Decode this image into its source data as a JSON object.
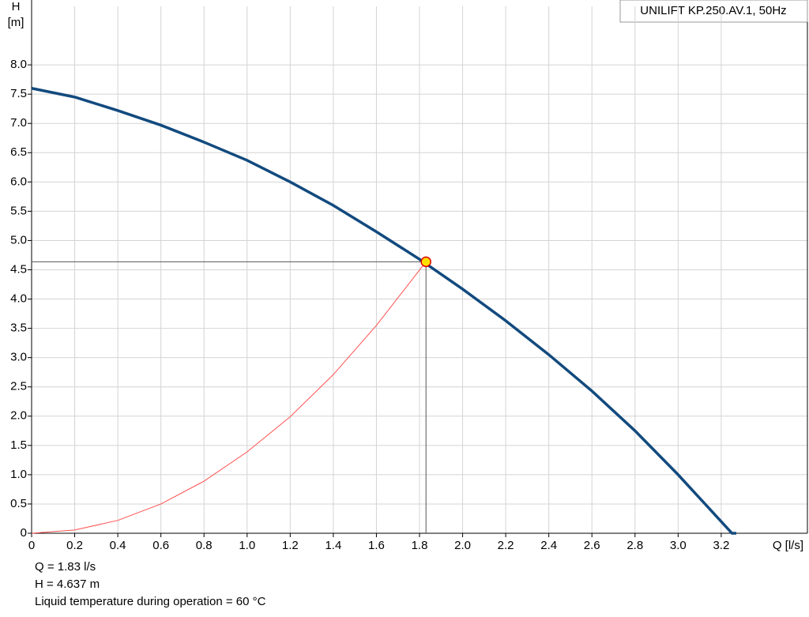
{
  "chart_data": {
    "type": "line",
    "title": "UNILIFT KP.250.AV.1, 50Hz",
    "x_label": "Q [l/s]",
    "y_label": [
      "H",
      "[m]"
    ],
    "xlim": [
      0,
      3.6
    ],
    "ylim": [
      0,
      9
    ],
    "xticks": [
      0,
      0.2,
      0.4,
      0.6,
      0.8,
      {
        "value": 1,
        "label": "1.0"
      },
      1.2,
      1.4,
      1.6,
      1.8,
      {
        "value": 2,
        "label": "2.0"
      },
      2.2,
      2.4,
      2.6,
      2.8,
      {
        "value": 3,
        "label": "3.0"
      },
      3.2
    ],
    "yticks": [
      0,
      0.5,
      {
        "value": 1,
        "label": "1.0"
      },
      1.5,
      {
        "value": 2,
        "label": "2.0"
      },
      2.5,
      {
        "value": 3,
        "label": "3.0"
      },
      3.5,
      {
        "value": 4,
        "label": "4.0"
      },
      4.5,
      {
        "value": 5,
        "label": "5.0"
      },
      5.5,
      {
        "value": 6,
        "label": "6.0"
      },
      6.5,
      {
        "value": 7,
        "label": "7.0"
      },
      7.5,
      {
        "value": 8,
        "label": "8.0"
      }
    ],
    "grid": true,
    "series": [
      {
        "color": "#124a7e",
        "x": [
          0,
          0.2,
          0.4,
          0.6,
          0.8,
          1.0,
          1.2,
          1.4,
          1.6,
          1.8,
          2.0,
          2.2,
          2.4,
          2.6,
          2.8,
          3.0,
          3.2,
          3.25,
          3.27
        ],
        "values": [
          7.6,
          7.45,
          7.22,
          6.97,
          6.68,
          6.37,
          6.0,
          5.6,
          5.15,
          4.68,
          4.17,
          3.63,
          3.05,
          2.43,
          1.75,
          1.0,
          0.2,
          0,
          0
        ]
      },
      {
        "color": "#ff5050",
        "x": [
          0,
          0.2,
          0.4,
          0.6,
          0.8,
          1.0,
          1.2,
          1.4,
          1.6,
          1.83
        ],
        "values": [
          0,
          0.055,
          0.22,
          0.5,
          0.89,
          1.39,
          1.99,
          2.71,
          3.55,
          4.637
        ]
      }
    ],
    "duty_point": {
      "q": 1.83,
      "h": 4.637
    },
    "info": [
      "Q = 1.83 l/s",
      "H = 4.637 m",
      "Liquid temperature during operation = 60 °C"
    ]
  }
}
